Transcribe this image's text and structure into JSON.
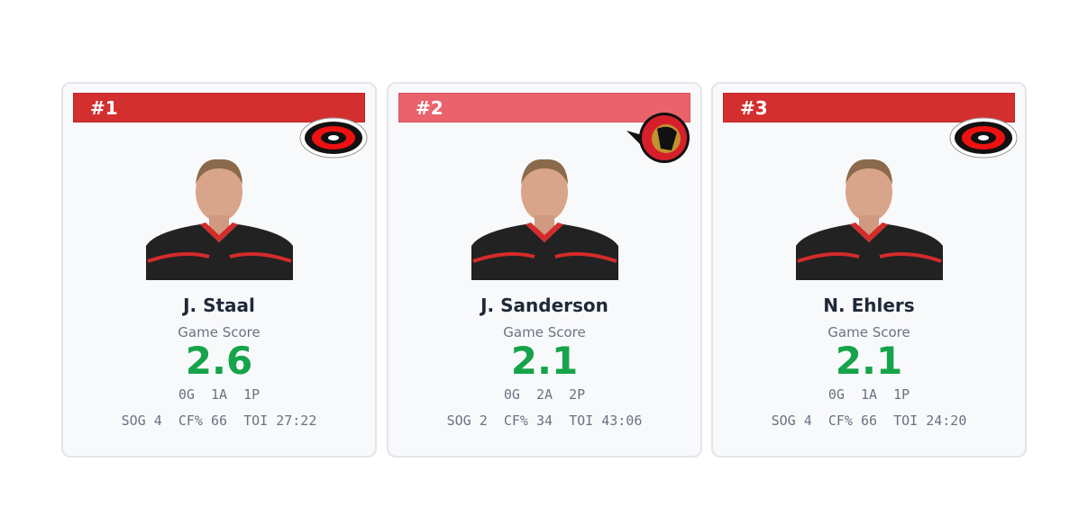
{
  "cards": [
    {
      "rank": "#1",
      "name": "J. Staal",
      "score_label": "Game Score",
      "score": "2.6",
      "goals": "0G",
      "assists": "1A",
      "points": "1P",
      "sog": "SOG 4",
      "cf": "CF% 66",
      "toi": "TOI 27:22"
    },
    {
      "rank": "#2",
      "name": "J. Sanderson",
      "score_label": "Game Score",
      "score": "2.1",
      "goals": "0G",
      "assists": "2A",
      "points": "2P",
      "sog": "SOG 2",
      "cf": "CF% 34",
      "toi": "TOI 43:06"
    },
    {
      "rank": "#3",
      "name": "N. Ehlers",
      "score_label": "Game Score",
      "score": "2.1",
      "goals": "0G",
      "assists": "1A",
      "points": "1P",
      "sog": "SOG 4",
      "cf": "CF% 66",
      "toi": "TOI 24:20"
    }
  ]
}
